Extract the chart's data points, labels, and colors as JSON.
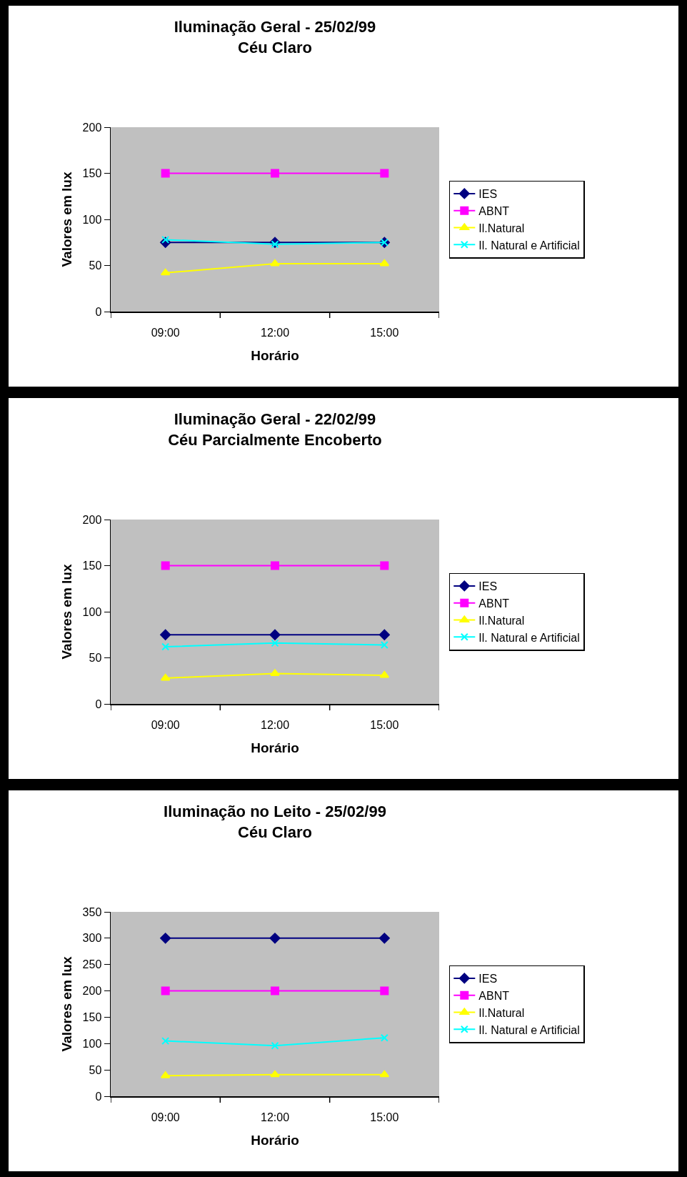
{
  "chart_data": [
    {
      "type": "line",
      "title": "Iluminação Geral - 25/02/99",
      "subtitle": "Céu Claro",
      "xlabel": "Horário",
      "ylabel": "Valores em lux",
      "categories": [
        "09:00",
        "12:00",
        "15:00"
      ],
      "ylim": [
        0,
        200
      ],
      "yticks": [
        0,
        50,
        100,
        150,
        200
      ],
      "grid": false,
      "legend": "right",
      "series": [
        {
          "name": "IES",
          "color": "#000080",
          "marker": "diamond",
          "values": [
            75,
            75,
            75
          ]
        },
        {
          "name": "ABNT",
          "color": "#ff00ff",
          "marker": "square",
          "values": [
            150,
            150,
            150
          ]
        },
        {
          "name": "Il.Natural",
          "color": "#ffff00",
          "marker": "triangle",
          "values": [
            42,
            52,
            52
          ]
        },
        {
          "name": "Il. Natural e Artificial",
          "color": "#00ffff",
          "marker": "cross",
          "values": [
            78,
            73,
            75
          ]
        }
      ]
    },
    {
      "type": "line",
      "title": "Iluminação Geral - 22/02/99",
      "subtitle": "Céu Parcialmente Encoberto",
      "xlabel": "Horário",
      "ylabel": "Valores em lux",
      "categories": [
        "09:00",
        "12:00",
        "15:00"
      ],
      "ylim": [
        0,
        200
      ],
      "yticks": [
        0,
        50,
        100,
        150,
        200
      ],
      "grid": false,
      "legend": "right",
      "series": [
        {
          "name": "IES",
          "color": "#000080",
          "marker": "diamond",
          "values": [
            75,
            75,
            75
          ]
        },
        {
          "name": "ABNT",
          "color": "#ff00ff",
          "marker": "square",
          "values": [
            150,
            150,
            150
          ]
        },
        {
          "name": "Il.Natural",
          "color": "#ffff00",
          "marker": "triangle",
          "values": [
            28,
            33,
            31
          ]
        },
        {
          "name": "Il. Natural e Artificial",
          "color": "#00ffff",
          "marker": "cross",
          "values": [
            62,
            66,
            64
          ]
        }
      ]
    },
    {
      "type": "line",
      "title": "Iluminação no Leito - 25/02/99",
      "subtitle": "Céu Claro",
      "xlabel": "Horário",
      "ylabel": "Valores em lux",
      "categories": [
        "09:00",
        "12:00",
        "15:00"
      ],
      "ylim": [
        0,
        350
      ],
      "yticks": [
        0,
        50,
        100,
        150,
        200,
        250,
        300,
        350
      ],
      "grid": false,
      "legend": "right",
      "series": [
        {
          "name": "IES",
          "color": "#000080",
          "marker": "diamond",
          "values": [
            300,
            300,
            300
          ]
        },
        {
          "name": "ABNT",
          "color": "#ff00ff",
          "marker": "square",
          "values": [
            200,
            200,
            200
          ]
        },
        {
          "name": "Il.Natural",
          "color": "#ffff00",
          "marker": "triangle",
          "values": [
            39,
            41,
            41
          ]
        },
        {
          "name": "Il. Natural e Artificial",
          "color": "#00ffff",
          "marker": "cross",
          "values": [
            105,
            96,
            111
          ]
        }
      ]
    }
  ]
}
